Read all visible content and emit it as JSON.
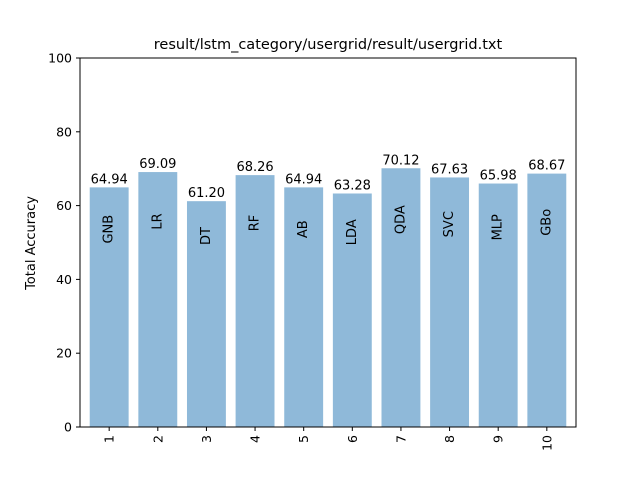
{
  "chart_data": {
    "type": "bar",
    "title": "result/lstm_category/usergrid/result/usergrid.txt",
    "xlabel": "",
    "ylabel": "Total Accuracy",
    "ylim": [
      0,
      100
    ],
    "yticks": [
      0,
      20,
      40,
      60,
      80,
      100
    ],
    "categories": [
      "1",
      "2",
      "3",
      "4",
      "5",
      "6",
      "7",
      "8",
      "9",
      "10"
    ],
    "values": [
      64.94,
      69.09,
      61.2,
      68.26,
      64.94,
      63.28,
      70.12,
      67.63,
      65.98,
      68.67
    ],
    "value_labels": [
      "64.94",
      "69.09",
      "61.20",
      "68.26",
      "64.94",
      "63.28",
      "70.12",
      "67.63",
      "65.98",
      "68.67"
    ],
    "bar_labels": [
      "GNB",
      "LR",
      "DT",
      "RF",
      "AB",
      "LDA",
      "QDA",
      "SVC",
      "MLP",
      "GBo"
    ],
    "bar_color": "#8fb9d9",
    "grid": false,
    "legend": "none"
  }
}
